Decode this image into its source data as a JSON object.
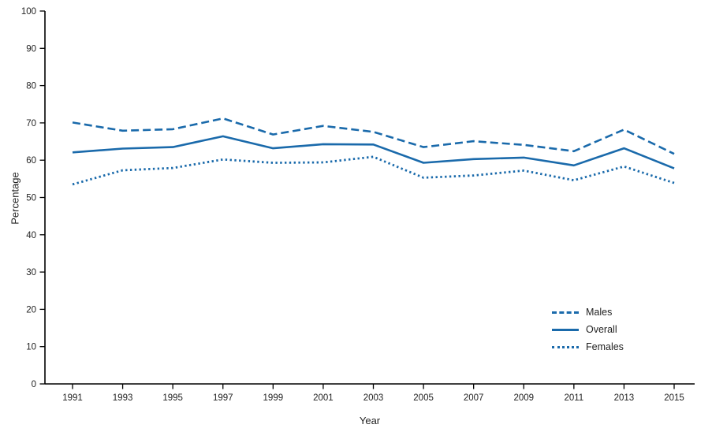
{
  "chart_data": {
    "type": "line",
    "title": "",
    "xlabel": "Year",
    "ylabel": "Percentage",
    "x": [
      1991,
      1993,
      1995,
      1997,
      1999,
      2001,
      2003,
      2005,
      2007,
      2009,
      2011,
      2013,
      2015
    ],
    "ylim": [
      0,
      100
    ],
    "ytick_interval": 10,
    "yticks": [
      0,
      10,
      20,
      30,
      40,
      50,
      60,
      70,
      80,
      90,
      100
    ],
    "grid": "off",
    "legend_position": "inside lower right",
    "line_color": "#1a6aab",
    "series": [
      {
        "name": "Males",
        "style": "dashed",
        "values": [
          70.1,
          67.9,
          68.3,
          71.2,
          66.9,
          69.2,
          67.6,
          63.5,
          65.1,
          64.1,
          62.4,
          68.2,
          61.7
        ]
      },
      {
        "name": "Overall",
        "style": "solid",
        "values": [
          62.1,
          63.1,
          63.5,
          66.4,
          63.2,
          64.3,
          64.2,
          59.3,
          60.3,
          60.7,
          58.6,
          63.2,
          57.8
        ]
      },
      {
        "name": "Females",
        "style": "dotted",
        "values": [
          53.5,
          57.3,
          57.9,
          60.2,
          59.3,
          59.4,
          60.9,
          55.3,
          55.9,
          57.2,
          54.6,
          58.3,
          53.9
        ]
      }
    ]
  }
}
